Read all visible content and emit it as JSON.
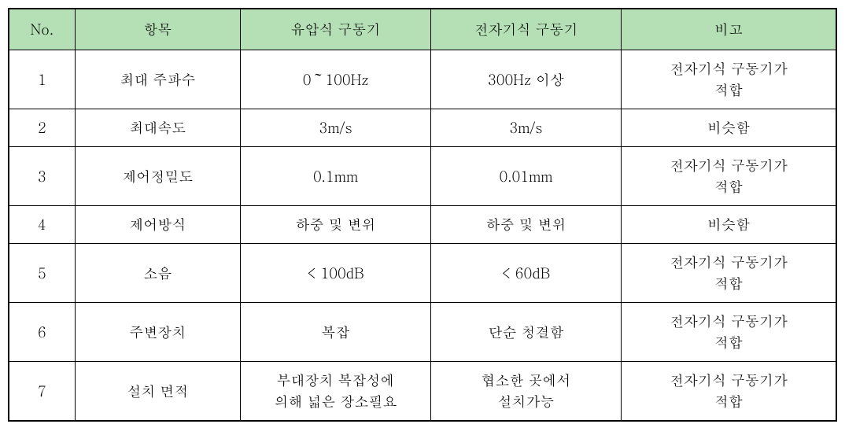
{
  "table": {
    "header_bg": "#b5e0b5",
    "border_color": "#000000",
    "font_size": 18,
    "columns": [
      {
        "key": "no",
        "label": "No.",
        "width": "8%"
      },
      {
        "key": "item",
        "label": "항목",
        "width": "20%"
      },
      {
        "key": "hydraulic",
        "label": "유압식 구동기",
        "width": "23%"
      },
      {
        "key": "electromagnetic",
        "label": "전자기식 구동기",
        "width": "23%"
      },
      {
        "key": "note",
        "label": "비고",
        "width": "26%"
      }
    ],
    "rows": [
      {
        "no": "1",
        "item": "최대 주파수",
        "hydraulic": "0～100Hz",
        "electromagnetic": "300Hz 이상",
        "note": "전자기식 구동기가\n적합"
      },
      {
        "no": "2",
        "item": "최대속도",
        "hydraulic": "3m/s",
        "electromagnetic": "3m/s",
        "note": "비슷함"
      },
      {
        "no": "3",
        "item": "제어정밀도",
        "hydraulic": "0.1mm",
        "electromagnetic": "0.01mm",
        "note": "전자기식 구동기가\n적합"
      },
      {
        "no": "4",
        "item": "제어방식",
        "hydraulic": "하중 및 변위",
        "electromagnetic": "하중 및 변위",
        "note": "비슷함"
      },
      {
        "no": "5",
        "item": "소음",
        "hydraulic": "< 100dB",
        "electromagnetic": "< 60dB",
        "note": "전자기식 구동기가\n적합"
      },
      {
        "no": "6",
        "item": "주변장치",
        "hydraulic": "복잡",
        "electromagnetic": "단순 청결함",
        "note": "전자기식 구동기가\n적합"
      },
      {
        "no": "7",
        "item": "설치 면적",
        "hydraulic": "부대장치 복잡성에\n의해 넓은 장소필요",
        "electromagnetic": "협소한 곳에서\n설치가능",
        "note": "전자기식 구동기가\n적합"
      }
    ]
  }
}
